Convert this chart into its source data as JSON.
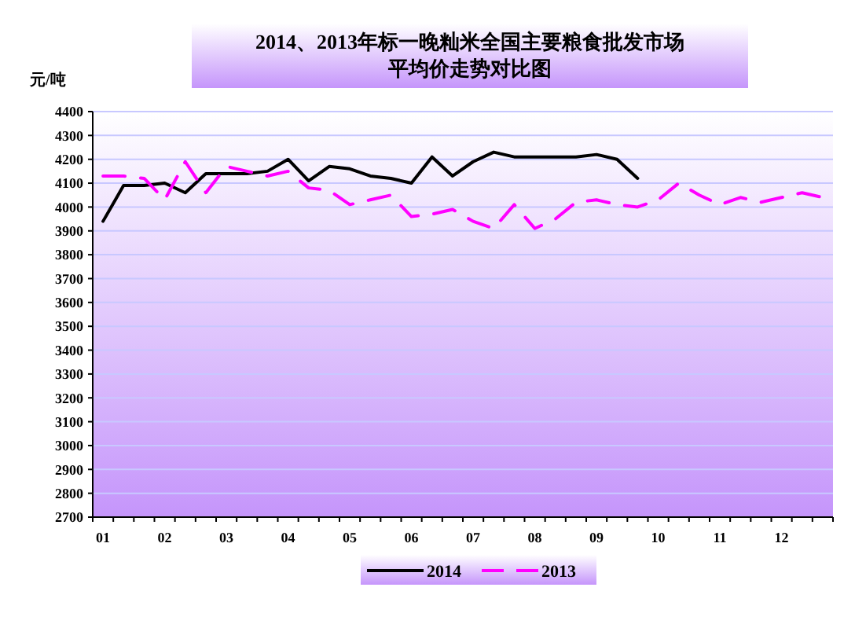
{
  "chart_data": {
    "type": "line",
    "title": "2014、2013年标一晚籼米全国主要粮食批发市场",
    "subtitle": "平均价走势对比图",
    "ylabel": "元/吨",
    "categories": [
      "01",
      null,
      null,
      "02",
      null,
      null,
      "03",
      null,
      null,
      "04",
      null,
      null,
      "05",
      null,
      null,
      "06",
      null,
      null,
      "07",
      null,
      null,
      "08",
      null,
      null,
      "09",
      null,
      null,
      "10",
      null,
      null,
      "11",
      null,
      null,
      "12",
      null,
      null
    ],
    "series": [
      {
        "name": "2014",
        "color": "#000000",
        "line_style": "solid",
        "values": [
          3940,
          4090,
          4090,
          4100,
          4060,
          4140,
          4140,
          4140,
          4150,
          4200,
          4110,
          4170,
          4160,
          4130,
          4120,
          4100,
          4210,
          4130,
          4190,
          4230,
          4210,
          4210,
          4210,
          4210,
          4220,
          4200,
          4120,
          null,
          null,
          null,
          null,
          null,
          null,
          null,
          null,
          null
        ]
      },
      {
        "name": "2013",
        "color": "#ff00ff",
        "line_style": "dashed",
        "values": [
          4130,
          4130,
          4120,
          4030,
          4190,
          4060,
          4170,
          4150,
          4130,
          4150,
          4080,
          4070,
          4010,
          4030,
          4050,
          3960,
          3970,
          3990,
          3940,
          3910,
          4010,
          3910,
          3950,
          4020,
          4030,
          4010,
          4000,
          4030,
          4100,
          4050,
          4010,
          4040,
          4020,
          4040,
          4060,
          4040
        ]
      }
    ],
    "ylim": [
      2700,
      4400
    ],
    "yticks": [
      2700,
      2800,
      2900,
      3000,
      3100,
      3200,
      3300,
      3400,
      3500,
      3600,
      3700,
      3800,
      3900,
      4000,
      4100,
      4200,
      4300,
      4400
    ],
    "grid": "y",
    "legend": "bottom"
  }
}
